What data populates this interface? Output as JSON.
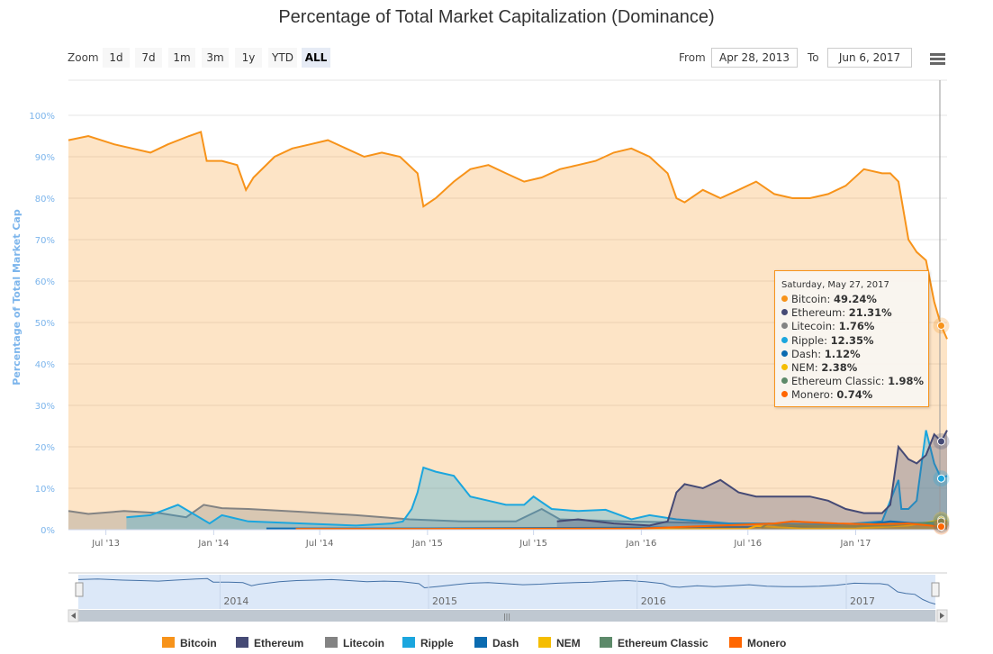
{
  "header": {
    "title": "Percentage of Total Market Capitalization (Dominance)"
  },
  "range_selector": {
    "zoom_label": "Zoom",
    "buttons": [
      "1d",
      "7d",
      "1m",
      "3m",
      "1y",
      "YTD",
      "ALL"
    ],
    "active_button": "ALL",
    "from_label": "From",
    "from_value": "Apr 28, 2013",
    "to_label": "To",
    "to_value": "Jun 6, 2017"
  },
  "menu": {
    "icon": "hamburger-menu-icon"
  },
  "tooltip": {
    "date": "Saturday, May 27, 2017",
    "rows": [
      {
        "name": "Bitcoin",
        "value": "49.24%",
        "color": "#f7931a"
      },
      {
        "name": "Ethereum",
        "value": "21.31%",
        "color": "#454a75"
      },
      {
        "name": "Litecoin",
        "value": "1.76%",
        "color": "#838383"
      },
      {
        "name": "Ripple",
        "value": "12.35%",
        "color": "#1ba6de"
      },
      {
        "name": "Dash",
        "value": "1.12%",
        "color": "#0b6bb0"
      },
      {
        "name": "NEM",
        "value": "2.38%",
        "color": "#f5bd00"
      },
      {
        "name": "Ethereum Classic",
        "value": "1.98%",
        "color": "#5d8a6a"
      },
      {
        "name": "Monero",
        "value": "0.74%",
        "color": "#ff6600"
      }
    ]
  },
  "navigator": {
    "year_labels": [
      "2014",
      "2015",
      "2016",
      "2017"
    ],
    "scrollbar_grip": "|||"
  },
  "chart_data": {
    "type": "area",
    "title": "Percentage of Total Market Capitalization (Dominance)",
    "xlabel": "",
    "ylabel": "Percentage of Total Market Cap",
    "ylim": [
      0,
      100
    ],
    "xlim": [
      "2013-04-28",
      "2017-06-06"
    ],
    "y_ticks": [
      "0%",
      "10%",
      "20%",
      "30%",
      "40%",
      "50%",
      "60%",
      "70%",
      "80%",
      "90%",
      "100%"
    ],
    "x_ticks": [
      "Jul '13",
      "Jan '14",
      "Jul '14",
      "Jan '15",
      "Jul '15",
      "Jan '16",
      "Jul '16",
      "Jan '17"
    ],
    "x_tick_dates": [
      "2013-07-01",
      "2014-01-01",
      "2014-07-01",
      "2015-01-01",
      "2015-07-01",
      "2016-01-01",
      "2016-07-01",
      "2017-01-01"
    ],
    "grid": true,
    "legend_position": "bottom",
    "series": [
      {
        "name": "Bitcoin",
        "color": "#f7931a",
        "x": [
          "2013-04-28",
          "2013-06-01",
          "2013-07-15",
          "2013-08-15",
          "2013-09-15",
          "2013-10-15",
          "2013-11-20",
          "2013-12-10",
          "2013-12-20",
          "2014-01-15",
          "2014-02-10",
          "2014-02-25",
          "2014-03-10",
          "2014-04-15",
          "2014-05-15",
          "2014-06-15",
          "2014-07-15",
          "2014-08-15",
          "2014-09-15",
          "2014-10-15",
          "2014-11-15",
          "2014-12-15",
          "2014-12-25",
          "2015-01-15",
          "2015-02-15",
          "2015-03-15",
          "2015-04-15",
          "2015-05-15",
          "2015-06-15",
          "2015-07-15",
          "2015-08-15",
          "2015-09-15",
          "2015-10-15",
          "2015-11-15",
          "2015-12-15",
          "2016-01-15",
          "2016-02-15",
          "2016-03-01",
          "2016-03-15",
          "2016-04-15",
          "2016-05-15",
          "2016-06-15",
          "2016-07-15",
          "2016-08-15",
          "2016-09-15",
          "2016-10-15",
          "2016-11-15",
          "2016-12-15",
          "2017-01-15",
          "2017-02-15",
          "2017-03-01",
          "2017-03-15",
          "2017-04-01",
          "2017-04-15",
          "2017-05-01",
          "2017-05-15",
          "2017-05-27",
          "2017-06-06"
        ],
        "y": [
          94,
          95,
          93,
          92,
          91,
          93,
          95,
          96,
          89,
          89,
          88,
          82,
          85,
          90,
          92,
          93,
          94,
          92,
          90,
          91,
          90,
          86,
          78,
          80,
          84,
          87,
          88,
          86,
          84,
          85,
          87,
          88,
          89,
          91,
          92,
          90,
          86,
          80,
          79,
          82,
          80,
          82,
          84,
          81,
          80,
          80,
          81,
          83,
          87,
          86,
          86,
          84,
          70,
          67,
          65,
          55,
          49.24,
          46
        ]
      },
      {
        "name": "Ethereum",
        "color": "#454a75",
        "x": [
          "2015-08-10",
          "2015-09-15",
          "2015-11-15",
          "2016-01-15",
          "2016-02-15",
          "2016-03-01",
          "2016-03-15",
          "2016-04-15",
          "2016-05-15",
          "2016-06-15",
          "2016-07-15",
          "2016-08-15",
          "2016-09-15",
          "2016-10-15",
          "2016-11-15",
          "2016-12-15",
          "2017-01-15",
          "2017-02-15",
          "2017-03-01",
          "2017-03-15",
          "2017-04-01",
          "2017-04-15",
          "2017-05-01",
          "2017-05-15",
          "2017-05-27",
          "2017-06-06"
        ],
        "y": [
          2,
          2.5,
          1.5,
          1,
          2,
          9,
          11,
          10,
          12,
          9,
          8,
          8,
          8,
          8,
          7,
          5,
          4,
          4,
          6,
          20,
          17,
          16,
          18,
          23,
          21.31,
          24
        ]
      },
      {
        "name": "Litecoin",
        "color": "#838383",
        "x": [
          "2013-04-28",
          "2013-06-01",
          "2013-08-01",
          "2013-10-01",
          "2013-11-15",
          "2013-12-15",
          "2014-01-15",
          "2014-03-01",
          "2014-06-01",
          "2014-09-01",
          "2014-12-01",
          "2015-03-01",
          "2015-06-01",
          "2015-07-15",
          "2015-08-15",
          "2015-12-01",
          "2016-06-01",
          "2016-12-01",
          "2017-03-15",
          "2017-05-27",
          "2017-06-06"
        ],
        "y": [
          4.5,
          3.8,
          4.5,
          4,
          3,
          6,
          5.2,
          5,
          4.3,
          3.5,
          2.5,
          2,
          2,
          5,
          2.5,
          2,
          1.5,
          1.3,
          1.5,
          1.76,
          1.6
        ]
      },
      {
        "name": "Ripple",
        "color": "#1ba6de",
        "x": [
          "2013-08-05",
          "2013-09-15",
          "2013-11-01",
          "2013-12-01",
          "2013-12-25",
          "2014-01-15",
          "2014-03-01",
          "2014-06-01",
          "2014-09-01",
          "2014-11-01",
          "2014-11-20",
          "2014-12-05",
          "2014-12-15",
          "2014-12-25",
          "2015-01-15",
          "2015-02-15",
          "2015-03-15",
          "2015-04-15",
          "2015-05-15",
          "2015-06-15",
          "2015-07-01",
          "2015-08-01",
          "2015-09-15",
          "2015-11-01",
          "2015-12-15",
          "2016-01-15",
          "2016-03-01",
          "2016-06-01",
          "2016-09-01",
          "2016-12-01",
          "2017-02-15",
          "2017-03-15",
          "2017-03-20",
          "2017-04-01",
          "2017-04-15",
          "2017-05-01",
          "2017-05-15",
          "2017-05-27",
          "2017-06-06"
        ],
        "y": [
          3,
          3.5,
          6,
          3.5,
          1.5,
          3.5,
          2,
          1.5,
          1,
          1.5,
          2,
          5,
          9,
          15,
          14,
          13,
          8,
          7,
          6,
          6,
          8,
          5,
          4.5,
          4.8,
          2.5,
          3.5,
          2.5,
          1.5,
          1.5,
          1.2,
          2,
          12,
          5,
          5,
          7,
          24,
          16,
          12.35,
          13
        ]
      },
      {
        "name": "Dash",
        "color": "#0b6bb0",
        "x": [
          "2014-04-01",
          "2015-01-01",
          "2016-01-01",
          "2017-01-01",
          "2017-03-01",
          "2017-04-15",
          "2017-05-27",
          "2017-06-06"
        ],
        "y": [
          0.3,
          0.3,
          0.5,
          0.8,
          2,
          1.5,
          1.12,
          1.1
        ]
      },
      {
        "name": "NEM",
        "color": "#f5bd00",
        "x": [
          "2015-04-01",
          "2016-01-01",
          "2016-07-01",
          "2016-07-15",
          "2016-10-01",
          "2017-01-01",
          "2017-04-01",
          "2017-05-27",
          "2017-06-06"
        ],
        "y": [
          0.1,
          0.1,
          0.2,
          0.9,
          0.3,
          0.3,
          1,
          2.38,
          2.2
        ]
      },
      {
        "name": "Ethereum Classic",
        "color": "#5d8a6a",
        "x": [
          "2016-07-24",
          "2016-08-05",
          "2016-09-01",
          "2016-12-01",
          "2017-03-01",
          "2017-05-27",
          "2017-06-06"
        ],
        "y": [
          0.5,
          1.5,
          1,
          0.8,
          1,
          1.98,
          1.9
        ]
      },
      {
        "name": "Monero",
        "color": "#ff6600",
        "x": [
          "2014-05-21",
          "2015-01-01",
          "2016-01-01",
          "2016-08-15",
          "2016-09-15",
          "2016-12-01",
          "2017-02-01",
          "2017-04-01",
          "2017-05-27",
          "2017-06-06"
        ],
        "y": [
          0.2,
          0.2,
          0.3,
          1.5,
          2,
          1.5,
          1.3,
          1.5,
          0.74,
          0.8
        ]
      }
    ],
    "hover_date": "2017-05-27"
  }
}
